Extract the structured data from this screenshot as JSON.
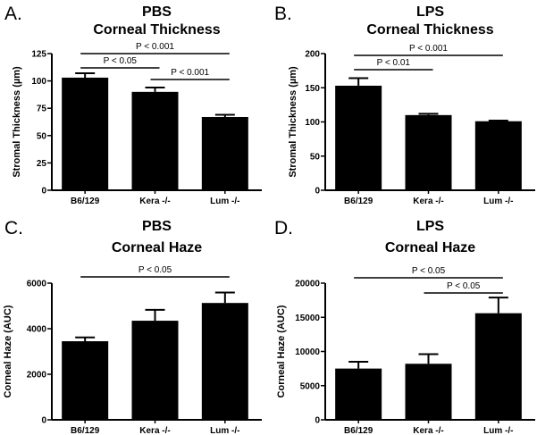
{
  "chart_data": [
    {
      "type": "bar",
      "letter": "A.",
      "title": [
        "PBS",
        "Corneal Thickness"
      ],
      "ylabel": "Stromal Thickness (µm)",
      "ylim": [
        0,
        125
      ],
      "yticks": [
        0,
        25,
        50,
        75,
        100,
        125
      ],
      "categories": [
        "B6/129",
        "Kera -/-",
        "Lum -/-"
      ],
      "values": [
        103,
        90,
        67
      ],
      "errors": [
        4,
        4,
        2
      ],
      "bar_color": "#000000",
      "comparisons": [
        {
          "from": 0,
          "to": 2,
          "label": "P < 0.001"
        },
        {
          "from": 0,
          "to": 1,
          "label": "P < 0.05"
        },
        {
          "from": 1,
          "to": 2,
          "label": "P < 0.001"
        }
      ]
    },
    {
      "type": "bar",
      "letter": "B.",
      "title": [
        "LPS",
        "Corneal Thickness"
      ],
      "ylabel": "Stromal Thickness (µm)",
      "ylim": [
        0,
        200
      ],
      "yticks": [
        0,
        50,
        100,
        150,
        200
      ],
      "categories": [
        "B6/129",
        "Kera -/-",
        "Lum -/-"
      ],
      "values": [
        153,
        110,
        101
      ],
      "errors": [
        11,
        2,
        1
      ],
      "bar_color": "#000000",
      "comparisons": [
        {
          "from": 0,
          "to": 2,
          "label": "P < 0.001"
        },
        {
          "from": 0,
          "to": 1,
          "label": "P < 0.01"
        }
      ]
    },
    {
      "type": "bar",
      "letter": "C.",
      "title": [
        "PBS",
        "Corneal Haze"
      ],
      "ylabel": "Corneal Haze (AUC)",
      "ylim": [
        0,
        6000
      ],
      "yticks": [
        0,
        2000,
        4000,
        6000
      ],
      "categories": [
        "B6/129",
        "Kera -/-",
        "Lum -/-"
      ],
      "values": [
        3450,
        4350,
        5130
      ],
      "errors": [
        170,
        480,
        460
      ],
      "bar_color": "#000000",
      "comparisons": [
        {
          "from": 0,
          "to": 2,
          "label": "P < 0.05"
        }
      ]
    },
    {
      "type": "bar",
      "letter": "D.",
      "title": [
        "LPS",
        "Corneal Haze"
      ],
      "ylabel": "Corneal Haze (AUC)",
      "ylim": [
        0,
        20000
      ],
      "yticks": [
        0,
        5000,
        10000,
        15000,
        20000
      ],
      "categories": [
        "B6/129",
        "Kera -/-",
        "Lum -/-"
      ],
      "values": [
        7500,
        8200,
        15600
      ],
      "errors": [
        1000,
        1400,
        2300
      ],
      "bar_color": "#000000",
      "comparisons": [
        {
          "from": 0,
          "to": 2,
          "label": "P < 0.05"
        },
        {
          "from": 1,
          "to": 2,
          "label": "P < 0.05"
        }
      ]
    }
  ]
}
